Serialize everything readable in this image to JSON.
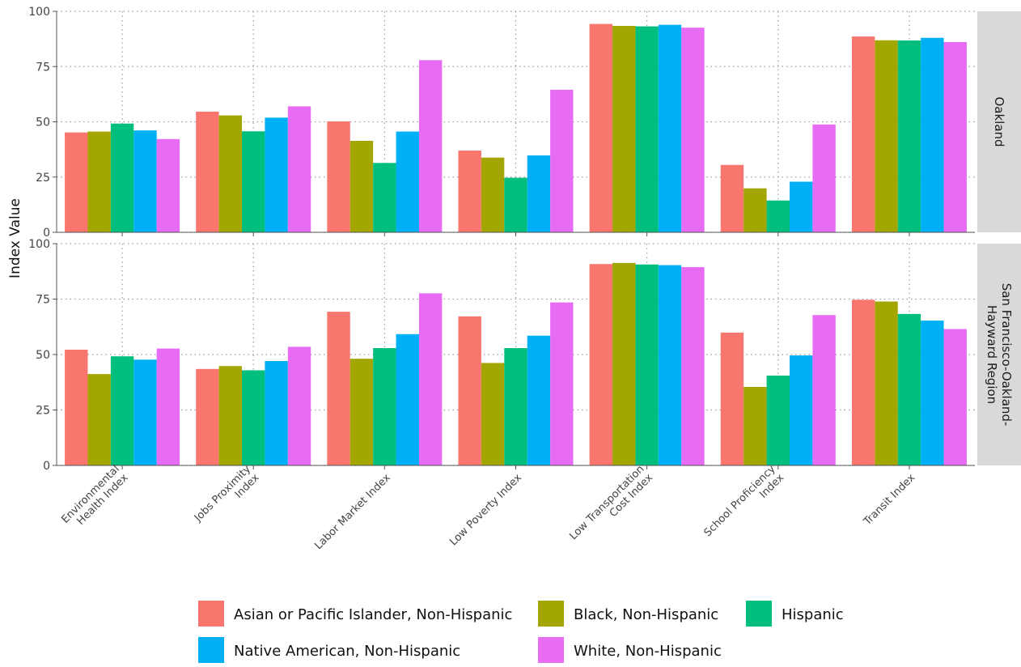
{
  "chart_data": {
    "type": "bar",
    "ylabel": "Index Value",
    "ylim": [
      0,
      100
    ],
    "yticks": [
      "0",
      "25",
      "50",
      "75",
      "100"
    ],
    "grid": true,
    "legend_position": "bottom",
    "categories": [
      "Environmental Health Index",
      "Jobs Proximity Index",
      "Labor Market Index",
      "Low Poverty Index",
      "Low Transportation Cost Index",
      "School Proficiency Index",
      "Transit Index"
    ],
    "category_tick_labels": [
      [
        "Environmental",
        "Health Index"
      ],
      [
        "Jobs Proximity",
        "Index"
      ],
      [
        "Labor Market Index"
      ],
      [
        "Low Poverty Index"
      ],
      [
        "Low Transportation",
        "Cost Index"
      ],
      [
        "School Proficiency",
        "Index"
      ],
      [
        "Transit Index"
      ]
    ],
    "series_colors": [
      "#F8766D",
      "#A3A500",
      "#00BF7D",
      "#00B0F6",
      "#E76BF3"
    ],
    "legend": [
      "Asian or Pacific Islander, Non-Hispanic",
      "Black, Non-Hispanic",
      "Hispanic",
      "Native American, Non-Hispanic",
      "White, Non-Hispanic"
    ],
    "panels": [
      {
        "strip_lines": [
          "Oakland"
        ],
        "series": [
          {
            "name": "Asian or Pacific Islander, Non-Hispanic",
            "values": [
              45.2,
              54.6,
              50.2,
              37.0,
              94.3,
              30.5,
              88.6
            ]
          },
          {
            "name": "Black, Non-Hispanic",
            "values": [
              45.6,
              52.9,
              41.4,
              33.8,
              93.4,
              19.9,
              86.9
            ]
          },
          {
            "name": "Hispanic",
            "values": [
              49.2,
              45.7,
              31.4,
              24.7,
              93.2,
              14.4,
              86.8
            ]
          },
          {
            "name": "Native American, Non-Hispanic",
            "values": [
              46.1,
              51.9,
              45.6,
              34.8,
              93.9,
              22.9,
              88.0
            ]
          },
          {
            "name": "White, Non-Hispanic",
            "values": [
              42.2,
              57.0,
              77.9,
              64.5,
              92.6,
              48.8,
              86.1
            ]
          }
        ]
      },
      {
        "strip_lines": [
          "San Francisco-Oakland-",
          "Hayward Region"
        ],
        "series": [
          {
            "name": "Asian or Pacific Islander, Non-Hispanic",
            "values": [
              52.2,
              43.5,
              69.3,
              67.2,
              90.8,
              59.9,
              74.7
            ]
          },
          {
            "name": "Black, Non-Hispanic",
            "values": [
              41.2,
              44.8,
              48.1,
              46.2,
              91.3,
              35.4,
              73.9
            ]
          },
          {
            "name": "Hispanic",
            "values": [
              49.2,
              42.9,
              52.9,
              52.9,
              90.6,
              40.5,
              68.3
            ]
          },
          {
            "name": "Native American, Non-Hispanic",
            "values": [
              47.7,
              47.1,
              59.2,
              58.5,
              90.3,
              49.6,
              65.3
            ]
          },
          {
            "name": "White, Non-Hispanic",
            "values": [
              52.7,
              53.5,
              77.6,
              73.5,
              89.4,
              67.8,
              61.5
            ]
          }
        ]
      }
    ]
  }
}
